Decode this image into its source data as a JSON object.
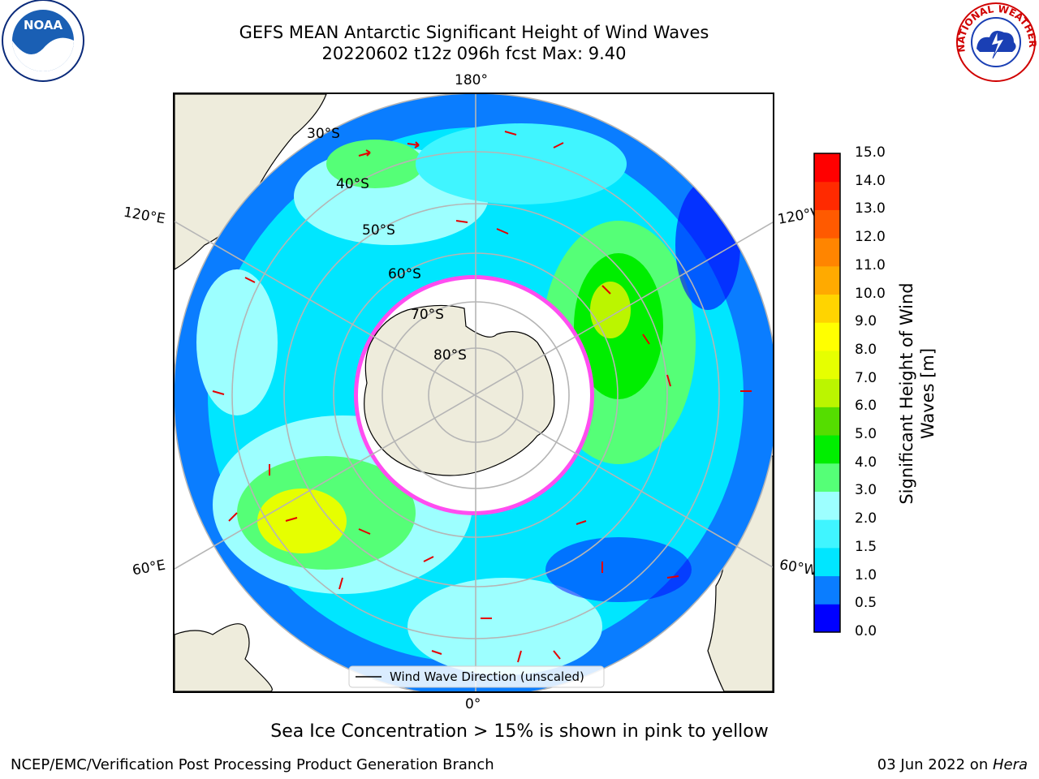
{
  "title": {
    "line1": "GEFS MEAN Antarctic Significant Height of Wind Waves",
    "line2": "20220602 t12z 096h fcst   Max: 9.40"
  },
  "map": {
    "longitude_labels": {
      "top": "180°",
      "bottom": "0°",
      "left_upper": "120°E",
      "left_lower": "60°E",
      "right_upper": "120°W",
      "right_lower": "60°W"
    },
    "latitude_labels": [
      "30°S",
      "40°S",
      "50°S",
      "60°S",
      "70°S",
      "80°S"
    ],
    "legend_label": "Wind Wave Direction (unscaled)",
    "colors": {
      "land": "#eeecdc",
      "arrow": "#e50000",
      "sea_ice": "#ff4df0",
      "grid": "#b5b5b5"
    }
  },
  "colorbar": {
    "label": "Significant Height of Wind Waves [m]",
    "ticks": [
      "0.0",
      "0.5",
      "1.0",
      "1.5",
      "2.0",
      "3.0",
      "4.0",
      "5.0",
      "6.0",
      "7.0",
      "8.0",
      "9.0",
      "10.0",
      "11.0",
      "12.0",
      "13.0",
      "14.0",
      "15.0"
    ],
    "colors": [
      "#0000ff",
      "#0a7dff",
      "#00e6ff",
      "#40f5ff",
      "#9dffff",
      "#55ff77",
      "#00ee00",
      "#55dd00",
      "#bbf500",
      "#e6ff00",
      "#ffff00",
      "#ffd400",
      "#ffaa00",
      "#ff8500",
      "#ff5a00",
      "#ff2a00",
      "#ff0000"
    ]
  },
  "note": "Sea Ice Concentration > 15% is shown in pink to yellow",
  "footer": {
    "left": "NCEP/EMC/Verification Post Processing Product Generation Branch",
    "date": "03 Jun 2022 on ",
    "system": "Hera"
  },
  "logos": {
    "noaa": "NOAA",
    "nws": "NATIONAL WEATHER SERVICE"
  }
}
